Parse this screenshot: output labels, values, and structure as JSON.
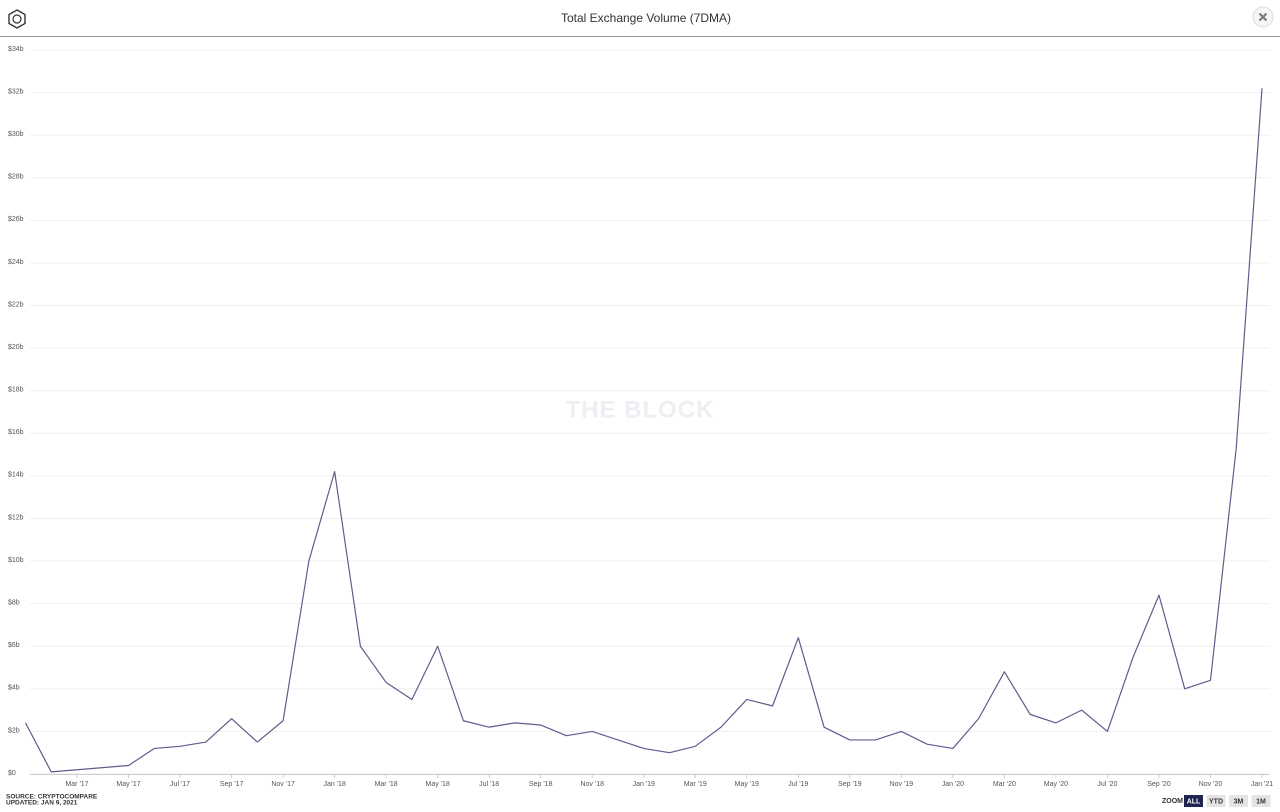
{
  "chart_data": {
    "type": "line",
    "title": "Total Exchange Volume (7DMA)",
    "watermark": "THE BLOCK",
    "source": "SOURCE: CRYPTOCOMPARE",
    "updated": "UPDATED: JAN 9, 2021",
    "color": "#5e5d8c",
    "grid": true,
    "x": [
      "2017-01",
      "2017-02",
      "2017-03",
      "2017-04",
      "2017-05",
      "2017-06",
      "2017-07",
      "2017-08",
      "2017-09",
      "2017-10",
      "2017-11",
      "2017-12",
      "2018-01",
      "2018-02",
      "2018-03",
      "2018-04",
      "2018-05",
      "2018-06",
      "2018-07",
      "2018-08",
      "2018-09",
      "2018-10",
      "2018-11",
      "2018-12",
      "2019-01",
      "2019-02",
      "2019-03",
      "2019-04",
      "2019-05",
      "2019-06",
      "2019-07",
      "2019-08",
      "2019-09",
      "2019-10",
      "2019-11",
      "2019-12",
      "2020-01",
      "2020-02",
      "2020-03",
      "2020-04",
      "2020-05",
      "2020-06",
      "2020-07",
      "2020-08",
      "2020-09",
      "2020-10",
      "2020-11",
      "2020-12",
      "2021-01"
    ],
    "values": [
      2.4,
      0.1,
      0.2,
      0.3,
      0.4,
      1.2,
      1.3,
      1.5,
      2.6,
      1.5,
      2.5,
      10,
      14.2,
      6,
      4.3,
      3.5,
      6,
      2.5,
      2.2,
      2.4,
      2.3,
      1.8,
      2,
      1.6,
      1.2,
      1,
      1.3,
      2.2,
      3.5,
      3.2,
      6.4,
      2.2,
      1.6,
      1.6,
      2,
      1.4,
      1.2,
      2.6,
      4.8,
      2.8,
      2.4,
      3,
      2,
      5.5,
      8.4,
      4,
      4.4,
      15.3,
      32.2
    ],
    "xlim": [
      "2017-01",
      "2021-01"
    ],
    "xticks": [
      {
        "value": "2017-03",
        "label": "Mar '17"
      },
      {
        "value": "2017-05",
        "label": "May '17"
      },
      {
        "value": "2017-07",
        "label": "Jul '17"
      },
      {
        "value": "2017-09",
        "label": "Sep '17"
      },
      {
        "value": "2017-11",
        "label": "Nov '17"
      },
      {
        "value": "2018-01",
        "label": "Jan '18"
      },
      {
        "value": "2018-03",
        "label": "Mar '18"
      },
      {
        "value": "2018-05",
        "label": "May '18"
      },
      {
        "value": "2018-07",
        "label": "Jul '18"
      },
      {
        "value": "2018-09",
        "label": "Sep '18"
      },
      {
        "value": "2018-11",
        "label": "Nov '18"
      },
      {
        "value": "2019-01",
        "label": "Jan '19"
      },
      {
        "value": "2019-03",
        "label": "Mar '19"
      },
      {
        "value": "2019-05",
        "label": "May '19"
      },
      {
        "value": "2019-07",
        "label": "Jul '19"
      },
      {
        "value": "2019-09",
        "label": "Sep '19"
      },
      {
        "value": "2019-11",
        "label": "Nov '19"
      },
      {
        "value": "2020-01",
        "label": "Jan '20"
      },
      {
        "value": "2020-03",
        "label": "Mar '20"
      },
      {
        "value": "2020-05",
        "label": "May '20"
      },
      {
        "value": "2020-07",
        "label": "Jul '20"
      },
      {
        "value": "2020-09",
        "label": "Sep '20"
      },
      {
        "value": "2020-11",
        "label": "Nov '20"
      },
      {
        "value": "2021-01",
        "label": "Jan '21"
      }
    ],
    "ylim": [
      0,
      34
    ],
    "yticks": [
      {
        "value": 0,
        "label": "$0"
      },
      {
        "value": 2,
        "label": "$2b"
      },
      {
        "value": 4,
        "label": "$4b"
      },
      {
        "value": 6,
        "label": "$6b"
      },
      {
        "value": 8,
        "label": "$8b"
      },
      {
        "value": 10,
        "label": "$10b"
      },
      {
        "value": 12,
        "label": "$12b"
      },
      {
        "value": 14,
        "label": "$14b"
      },
      {
        "value": 16,
        "label": "$16b"
      },
      {
        "value": 18,
        "label": "$18b"
      },
      {
        "value": 20,
        "label": "$20b"
      },
      {
        "value": 22,
        "label": "$22b"
      },
      {
        "value": 24,
        "label": "$24b"
      },
      {
        "value": 26,
        "label": "$26b"
      },
      {
        "value": 28,
        "label": "$28b"
      },
      {
        "value": 30,
        "label": "$30b"
      },
      {
        "value": 32,
        "label": "$32b"
      },
      {
        "value": 34,
        "label": "$34b"
      }
    ]
  },
  "controls": {
    "zoom_label": "ZOOM",
    "buttons": [
      "ALL",
      "YTD",
      "3M",
      "1M"
    ],
    "active": 0
  }
}
